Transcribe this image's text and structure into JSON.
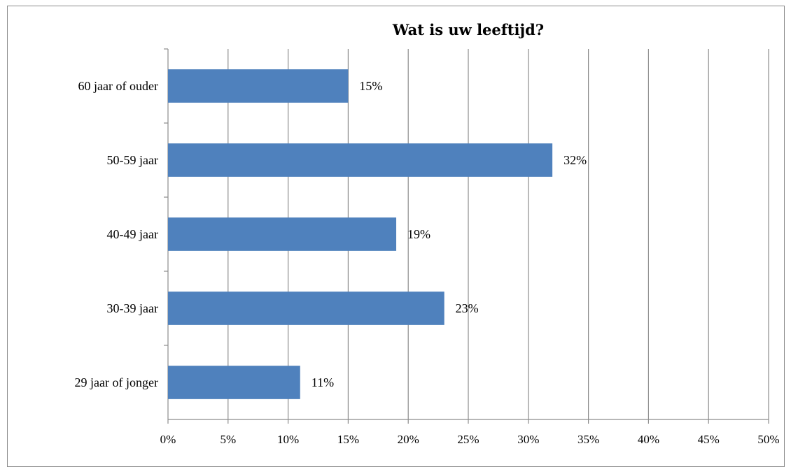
{
  "chart_data": {
    "type": "bar",
    "orientation": "horizontal",
    "title": "Wat is uw leeftijd?",
    "categories": [
      "60 jaar of ouder",
      "50-59 jaar",
      "40-49 jaar",
      "30-39 jaar",
      "29 jaar of jonger"
    ],
    "values": [
      15,
      32,
      19,
      23,
      11
    ],
    "data_labels": [
      "15%",
      "32%",
      "19%",
      "23%",
      "11%"
    ],
    "xlim": [
      0,
      50
    ],
    "x_ticks": [
      "0%",
      "5%",
      "10%",
      "15%",
      "20%",
      "25%",
      "30%",
      "35%",
      "40%",
      "45%",
      "50%"
    ],
    "grid": true,
    "legend": "none",
    "colors": {
      "bar": "#4f81bd",
      "grid": "#8c8c8c"
    }
  }
}
